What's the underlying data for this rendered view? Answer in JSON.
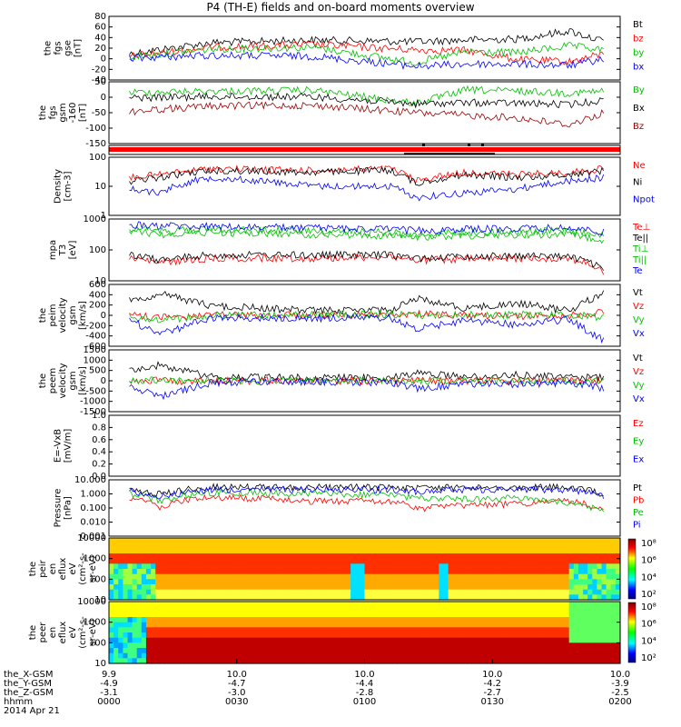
{
  "title": "P4 (TH-E) fields and on-board moments overview",
  "footer": {
    "rows": [
      {
        "label": "the_X-GSM",
        "values": [
          "9.9",
          "10.0",
          "10.0",
          "10.0",
          "10.0"
        ]
      },
      {
        "label": "the_Y-GSM",
        "values": [
          "-4.9",
          "-4.7",
          "-4.4",
          "-4.2",
          "-3.9"
        ]
      },
      {
        "label": "the_Z-GSM",
        "values": [
          "-3.1",
          "-3.0",
          "-2.8",
          "-2.7",
          "-2.5"
        ]
      },
      {
        "label": "hhmm",
        "values": [
          "0000",
          "0030",
          "0100",
          "0130",
          "0200"
        ]
      }
    ],
    "date": "2014 Apr 21"
  },
  "colors": {
    "black": "#000000",
    "red": "#ff0000",
    "green": "#00e000",
    "blue": "#0000ff",
    "darkred": "#990000"
  },
  "chart_data": [
    {
      "type": "line",
      "panel": "fgs",
      "ylabel": [
        "the",
        "fgs",
        "gse",
        "[nT]"
      ],
      "yticks": [
        "80",
        "60",
        "40",
        "20",
        "0",
        "-20",
        "-40"
      ],
      "ylim": [
        -50,
        90
      ],
      "x": [
        4,
        20,
        40,
        60,
        70,
        80,
        90,
        97
      ],
      "series": [
        {
          "name": "Bt",
          "color": "#000000",
          "values": [
            8,
            32,
            38,
            34,
            38,
            40,
            58,
            34
          ]
        },
        {
          "name": "bz",
          "color": "#ff0000",
          "values": [
            2,
            22,
            28,
            16,
            15,
            -5,
            -10,
            8
          ]
        },
        {
          "name": "by",
          "color": "#00c000",
          "values": [
            0,
            18,
            22,
            -12,
            12,
            10,
            25,
            15
          ]
        },
        {
          "name": "bx",
          "color": "#0000ff",
          "values": [
            -2,
            4,
            2,
            -20,
            -15,
            -15,
            -18,
            -4
          ]
        }
      ]
    },
    {
      "type": "line",
      "panel": "fgs-gsm",
      "ylabel": [
        "the",
        "fgs",
        "gsm",
        "-160",
        "[nT]"
      ],
      "yticks": [
        "50",
        "0",
        "-50",
        "-100",
        "-150"
      ],
      "ylim": [
        -170,
        60
      ],
      "x": [
        4,
        20,
        40,
        60,
        70,
        80,
        90,
        97
      ],
      "series": [
        {
          "name": "By",
          "color": "#00c000",
          "values": [
            20,
            25,
            28,
            -20,
            30,
            25,
            18,
            25
          ]
        },
        {
          "name": "Bx",
          "color": "#000000",
          "values": [
            0,
            5,
            4,
            -22,
            -18,
            -20,
            -25,
            -8
          ]
        },
        {
          "name": "Bz",
          "color": "#990000",
          "values": [
            -50,
            -30,
            -28,
            -55,
            -65,
            -75,
            -100,
            -55
          ]
        }
      ]
    },
    {
      "type": "heatmap",
      "panel": "flags",
      "ylabel": [],
      "yticks": []
    },
    {
      "type": "line",
      "panel": "density",
      "ylabel": [
        "Density",
        "[cm-3]"
      ],
      "yticks": [
        "100",
        "10",
        "1"
      ],
      "ylim": [
        1,
        100
      ],
      "log": true,
      "x": [
        4,
        10,
        20,
        40,
        55,
        60,
        70,
        80,
        90,
        97
      ],
      "series": [
        {
          "name": "Ne",
          "color": "#ff0000",
          "values": [
            20,
            25,
            40,
            35,
            40,
            15,
            30,
            25,
            30,
            40
          ]
        },
        {
          "name": "Ni",
          "color": "#000000",
          "values": [
            15,
            20,
            35,
            30,
            35,
            12,
            25,
            20,
            25,
            35
          ]
        },
        {
          "name": "Npot",
          "color": "#0000ff",
          "values": [
            8,
            6,
            20,
            10,
            10,
            4,
            6,
            8,
            15,
            20
          ]
        }
      ]
    },
    {
      "type": "line",
      "panel": "temperature",
      "ylabel": [
        "mpa",
        "T3",
        "[eV]"
      ],
      "yticks": [
        "1000",
        "100",
        "10"
      ],
      "ylim": [
        8,
        2000
      ],
      "log": true,
      "x": [
        4,
        10,
        20,
        40,
        55,
        60,
        70,
        80,
        90,
        97
      ],
      "series": [
        {
          "name": "Te⊥",
          "color": "#ff0000",
          "values": [
            60,
            40,
            60,
            60,
            70,
            50,
            55,
            60,
            60,
            15
          ]
        },
        {
          "name": "Te||",
          "color": "#000000",
          "values": [
            80,
            50,
            80,
            80,
            80,
            60,
            70,
            75,
            70,
            18
          ]
        },
        {
          "name": "Ti⊥",
          "color": "#00c000",
          "values": [
            700,
            500,
            600,
            500,
            450,
            400,
            450,
            500,
            500,
            300
          ]
        },
        {
          "name": "Ti||",
          "color": "#00c000",
          "values": [
            900,
            700,
            800,
            700,
            600,
            500,
            600,
            650,
            700,
            400
          ]
        },
        {
          "name": "Te",
          "color": "#0000ff",
          "values": [
            1200,
            1100,
            1000,
            900,
            800,
            700,
            800,
            850,
            900,
            600
          ]
        }
      ]
    },
    {
      "type": "line",
      "panel": "peim-velocity",
      "ylabel": [
        "the",
        "peim",
        "velocity",
        "gsm",
        "[km/s]"
      ],
      "yticks": [
        "600",
        "400",
        "200",
        "0",
        "-200",
        "-400",
        "-600"
      ],
      "ylim": [
        -650,
        650
      ],
      "x": [
        4,
        10,
        20,
        40,
        55,
        60,
        70,
        80,
        90,
        97
      ],
      "series": [
        {
          "name": "Vt",
          "color": "#000000",
          "values": [
            300,
            450,
            200,
            100,
            110,
            350,
            150,
            250,
            100,
            500
          ]
        },
        {
          "name": "Vz",
          "color": "#ff0000",
          "values": [
            0,
            -50,
            0,
            0,
            0,
            30,
            0,
            -20,
            0,
            60
          ]
        },
        {
          "name": "Vy",
          "color": "#00c000",
          "values": [
            -50,
            -100,
            0,
            10,
            20,
            0,
            10,
            10,
            20,
            -50
          ]
        },
        {
          "name": "Vx",
          "color": "#0000ff",
          "values": [
            -100,
            -400,
            -50,
            -60,
            -50,
            -300,
            -100,
            -200,
            -80,
            -550
          ]
        }
      ]
    },
    {
      "type": "line",
      "panel": "peem-velocity",
      "ylabel": [
        "the",
        "peem",
        "velocity",
        "gsm",
        "[km/s]"
      ],
      "yticks": [
        "1500",
        "1000",
        "500",
        "0",
        "-500",
        "-1000",
        "-1500"
      ],
      "ylim": [
        -1600,
        1600
      ],
      "x": [
        4,
        10,
        20,
        40,
        55,
        60,
        70,
        80,
        90,
        97
      ],
      "series": [
        {
          "name": "Vt",
          "color": "#000000",
          "values": [
            500,
            800,
            200,
            150,
            150,
            400,
            200,
            300,
            150,
            200
          ]
        },
        {
          "name": "Vz",
          "color": "#ff0000",
          "values": [
            0,
            0,
            0,
            0,
            0,
            0,
            0,
            0,
            0,
            0
          ]
        },
        {
          "name": "Vy",
          "color": "#00c000",
          "values": [
            0,
            50,
            0,
            0,
            50,
            0,
            0,
            0,
            0,
            0
          ]
        },
        {
          "name": "Vx",
          "color": "#0000ff",
          "values": [
            -300,
            -800,
            -100,
            -50,
            -100,
            -400,
            -150,
            -200,
            -100,
            -400
          ]
        }
      ]
    },
    {
      "type": "line",
      "panel": "efield",
      "ylabel": [
        "E=-VxB",
        "[mV/m]"
      ],
      "yticks": [
        "1.0",
        "0.8",
        "0.6",
        "0.4",
        "0.2",
        "0.0"
      ],
      "ylim": [
        0,
        1.0
      ],
      "series": [
        {
          "name": "Ez",
          "color": "#ff0000",
          "values": []
        },
        {
          "name": "Ey",
          "color": "#00c000",
          "values": []
        },
        {
          "name": "Ex",
          "color": "#0000ff",
          "values": []
        }
      ]
    },
    {
      "type": "line",
      "panel": "pressure",
      "ylabel": [
        "Pressure",
        "[nPa]"
      ],
      "yticks": [
        "10.000",
        "1.000",
        "0.100",
        "0.010",
        "0.001"
      ],
      "ylim": [
        0.001,
        10
      ],
      "log": true,
      "x": [
        4,
        10,
        20,
        40,
        55,
        60,
        70,
        80,
        90,
        97
      ],
      "series": [
        {
          "name": "Pt",
          "color": "#000000",
          "values": [
            2,
            1,
            3,
            3,
            3,
            2.5,
            2.8,
            2.8,
            3,
            0.8
          ]
        },
        {
          "name": "Pb",
          "color": "#ff0000",
          "values": [
            0.6,
            0.1,
            0.6,
            0.3,
            0.3,
            0.08,
            0.15,
            0.2,
            0.3,
            0.05
          ]
        },
        {
          "name": "Pe",
          "color": "#00c000",
          "values": [
            1,
            0.3,
            1.2,
            1,
            0.8,
            0.5,
            0.4,
            0.5,
            0.2,
            0.05
          ]
        },
        {
          "name": "Pi",
          "color": "#0000ff",
          "values": [
            1.5,
            0.6,
            2,
            2,
            2,
            1.5,
            2,
            2,
            2,
            0.6
          ]
        }
      ]
    },
    {
      "type": "heatmap",
      "panel": "peir-spectrogram",
      "ylabel": [
        "the",
        "peir",
        "en",
        "eflux",
        "eV",
        "(cm²-s-",
        "sr-eV)"
      ],
      "yticks": [
        "10000",
        "1000",
        "100",
        "10"
      ],
      "colorbar_ticks": [
        "10⁸",
        "10⁶",
        "10⁴",
        "10²"
      ]
    },
    {
      "type": "heatmap",
      "panel": "peer-spectrogram",
      "ylabel": [
        "the",
        "peer",
        "en",
        "eflux",
        "eV",
        "(cm²-s-",
        "sr-eV)"
      ],
      "yticks": [
        "10000",
        "1000",
        "100",
        "10"
      ],
      "colorbar_ticks": [
        "10⁸",
        "10⁶",
        "10⁴",
        "10²"
      ]
    }
  ]
}
